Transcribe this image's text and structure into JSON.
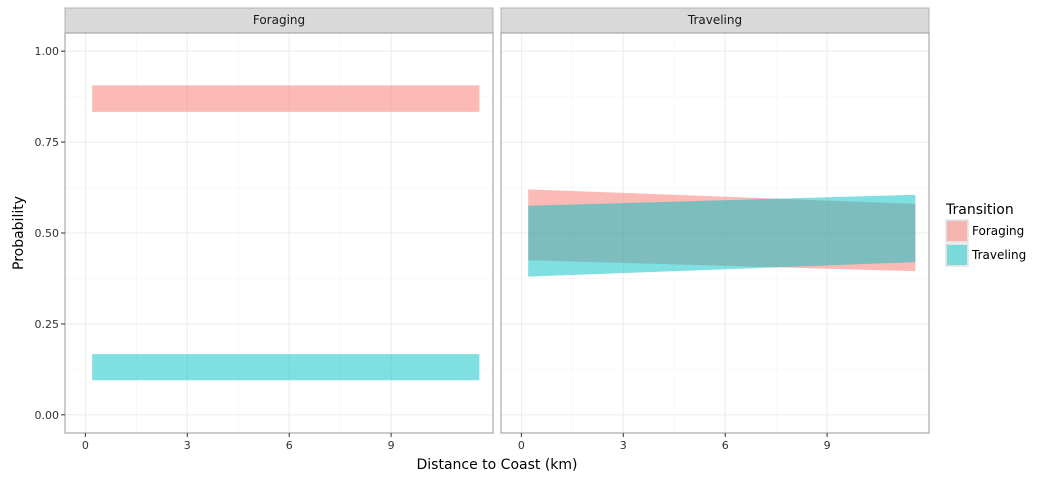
{
  "chart_data": {
    "type": "area",
    "xlabel": "Distance to Coast (km)",
    "ylabel": "Probability",
    "xlim": [
      -0.6,
      12.0
    ],
    "ylim": [
      -0.05,
      1.05
    ],
    "x_ticks": [
      0,
      3,
      6,
      9
    ],
    "y_ticks": [
      0.0,
      0.25,
      0.5,
      0.75,
      1.0
    ],
    "y_tick_labels": [
      "0.00",
      "0.25",
      "0.50",
      "0.75",
      "1.00"
    ],
    "grid": true,
    "legend": {
      "title": "Transition",
      "position": "right",
      "entries": [
        "Foraging",
        "Traveling"
      ]
    },
    "colors": {
      "Foraging": "#F8766D",
      "Traveling": "#00BFC4",
      "strip_bg": "#d9d9d9",
      "grid": "#ebebeb"
    },
    "fill_alpha": 0.5,
    "panels": [
      {
        "strip": "Foraging",
        "series": [
          {
            "name": "Foraging",
            "x": [
              0.2,
              11.6
            ],
            "ymin": [
              0.833,
              0.833
            ],
            "ymax": [
              0.906,
              0.906
            ]
          },
          {
            "name": "Traveling",
            "x": [
              0.2,
              11.6
            ],
            "ymin": [
              0.095,
              0.095
            ],
            "ymax": [
              0.167,
              0.167
            ]
          }
        ]
      },
      {
        "strip": "Traveling",
        "series": [
          {
            "name": "Foraging",
            "x": [
              0.2,
              11.6
            ],
            "ymin": [
              0.425,
              0.395
            ],
            "ymax": [
              0.62,
              0.58
            ]
          },
          {
            "name": "Traveling",
            "x": [
              0.2,
              11.6
            ],
            "ymin": [
              0.38,
              0.42
            ],
            "ymax": [
              0.575,
              0.605
            ]
          }
        ]
      }
    ]
  }
}
